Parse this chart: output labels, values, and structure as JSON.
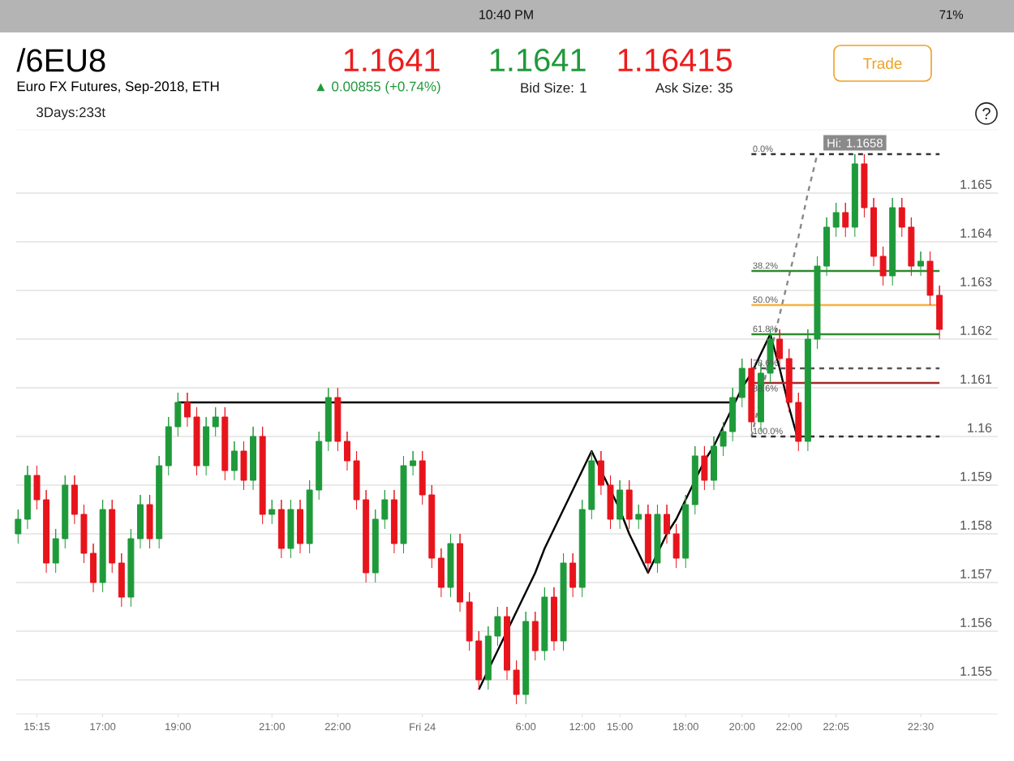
{
  "chart_data": {
    "type": "candlestick",
    "title": "/6EU8",
    "subtitle": "Euro FX Futures, Sep-2018, ETH",
    "categories": [
      null,
      null,
      "15:15",
      null,
      null,
      null,
      null,
      null,
      null,
      "17:00",
      null,
      null,
      null,
      null,
      null,
      null,
      null,
      "19:00",
      null,
      null,
      null,
      null,
      null,
      null,
      null,
      null,
      null,
      "21:00",
      null,
      null,
      null,
      null,
      null,
      null,
      "22:00",
      null,
      null,
      null,
      null,
      null,
      null,
      null,
      null,
      "Fri 24",
      null,
      null,
      null,
      null,
      null,
      null,
      null,
      null,
      null,
      null,
      "6:00",
      null,
      null,
      null,
      null,
      null,
      "12:00",
      null,
      null,
      null,
      "15:00",
      null,
      null,
      null,
      null,
      null,
      null,
      "18:00",
      null,
      null,
      null,
      null,
      null,
      "20:00",
      null,
      null,
      null,
      null,
      "22:00",
      null,
      null,
      null,
      null,
      "22:05",
      null,
      null,
      null,
      null,
      null,
      null,
      null,
      null,
      "22:30",
      null,
      null
    ],
    "ohlc": [
      [
        1.158,
        1.1585,
        1.1578,
        1.1583
      ],
      [
        1.1583,
        1.1594,
        1.1581,
        1.1592
      ],
      [
        1.1592,
        1.1594,
        1.1585,
        1.1587
      ],
      [
        1.1587,
        1.1589,
        1.1572,
        1.1574
      ],
      [
        1.1574,
        1.1581,
        1.1572,
        1.1579
      ],
      [
        1.1579,
        1.1592,
        1.1577,
        1.159
      ],
      [
        1.159,
        1.1592,
        1.1582,
        1.1584
      ],
      [
        1.1584,
        1.1586,
        1.1574,
        1.1576
      ],
      [
        1.1576,
        1.1578,
        1.1568,
        1.157
      ],
      [
        1.157,
        1.1587,
        1.1568,
        1.1585
      ],
      [
        1.1585,
        1.1587,
        1.1572,
        1.1574
      ],
      [
        1.1574,
        1.1576,
        1.1565,
        1.1567
      ],
      [
        1.1567,
        1.1581,
        1.1565,
        1.1579
      ],
      [
        1.1579,
        1.1588,
        1.1577,
        1.1586
      ],
      [
        1.1586,
        1.1588,
        1.1577,
        1.1579
      ],
      [
        1.1579,
        1.1596,
        1.1577,
        1.1594
      ],
      [
        1.1594,
        1.1604,
        1.1592,
        1.1602
      ],
      [
        1.1602,
        1.1609,
        1.16,
        1.1607
      ],
      [
        1.1607,
        1.1609,
        1.1602,
        1.1604
      ],
      [
        1.1604,
        1.1606,
        1.1592,
        1.1594
      ],
      [
        1.1594,
        1.1604,
        1.1592,
        1.1602
      ],
      [
        1.1602,
        1.1606,
        1.16,
        1.1604
      ],
      [
        1.1604,
        1.1606,
        1.1591,
        1.1593
      ],
      [
        1.1593,
        1.1599,
        1.1591,
        1.1597
      ],
      [
        1.1597,
        1.1599,
        1.1589,
        1.1591
      ],
      [
        1.1591,
        1.1602,
        1.1589,
        1.16
      ],
      [
        1.16,
        1.1602,
        1.1582,
        1.1584
      ],
      [
        1.1584,
        1.1587,
        1.1582,
        1.1585
      ],
      [
        1.1585,
        1.1587,
        1.1575,
        1.1577
      ],
      [
        1.1577,
        1.1587,
        1.1575,
        1.1585
      ],
      [
        1.1585,
        1.1587,
        1.1576,
        1.1578
      ],
      [
        1.1578,
        1.1591,
        1.1576,
        1.1589
      ],
      [
        1.1589,
        1.1601,
        1.1587,
        1.1599
      ],
      [
        1.1599,
        1.161,
        1.1597,
        1.1608
      ],
      [
        1.1608,
        1.161,
        1.1597,
        1.1599
      ],
      [
        1.1599,
        1.1601,
        1.1593,
        1.1595
      ],
      [
        1.1595,
        1.1597,
        1.1585,
        1.1587
      ],
      [
        1.1587,
        1.1589,
        1.157,
        1.1572
      ],
      [
        1.1572,
        1.1585,
        1.157,
        1.1583
      ],
      [
        1.1583,
        1.1589,
        1.1581,
        1.1587
      ],
      [
        1.1587,
        1.1589,
        1.1576,
        1.1578
      ],
      [
        1.1578,
        1.1596,
        1.1576,
        1.1594
      ],
      [
        1.1594,
        1.1597,
        1.1592,
        1.1595
      ],
      [
        1.1595,
        1.1597,
        1.1586,
        1.1588
      ],
      [
        1.1588,
        1.159,
        1.1573,
        1.1575
      ],
      [
        1.1575,
        1.1577,
        1.1567,
        1.1569
      ],
      [
        1.1569,
        1.158,
        1.1567,
        1.1578
      ],
      [
        1.1578,
        1.158,
        1.1564,
        1.1566
      ],
      [
        1.1566,
        1.1568,
        1.1556,
        1.1558
      ],
      [
        1.1558,
        1.156,
        1.1548,
        1.155
      ],
      [
        1.155,
        1.1561,
        1.1548,
        1.1559
      ],
      [
        1.1559,
        1.1565,
        1.1557,
        1.1563
      ],
      [
        1.1563,
        1.1565,
        1.155,
        1.1552
      ],
      [
        1.1552,
        1.1554,
        1.1545,
        1.1547
      ],
      [
        1.1547,
        1.1564,
        1.1545,
        1.1562
      ],
      [
        1.1562,
        1.1564,
        1.1554,
        1.1556
      ],
      [
        1.1556,
        1.1569,
        1.1554,
        1.1567
      ],
      [
        1.1567,
        1.1569,
        1.1556,
        1.1558
      ],
      [
        1.1558,
        1.1576,
        1.1556,
        1.1574
      ],
      [
        1.1574,
        1.1576,
        1.1567,
        1.1569
      ],
      [
        1.1569,
        1.1587,
        1.1567,
        1.1585
      ],
      [
        1.1585,
        1.1597,
        1.1583,
        1.1595
      ],
      [
        1.1595,
        1.1597,
        1.1588,
        1.159
      ],
      [
        1.159,
        1.1592,
        1.1581,
        1.1583
      ],
      [
        1.1583,
        1.1591,
        1.1581,
        1.1589
      ],
      [
        1.1589,
        1.1591,
        1.1581,
        1.1583
      ],
      [
        1.1583,
        1.1586,
        1.1581,
        1.1584
      ],
      [
        1.1584,
        1.1586,
        1.1572,
        1.1574
      ],
      [
        1.1574,
        1.1586,
        1.1572,
        1.1584
      ],
      [
        1.1584,
        1.1586,
        1.1578,
        1.158
      ],
      [
        1.158,
        1.1582,
        1.1573,
        1.1575
      ],
      [
        1.1575,
        1.1588,
        1.1573,
        1.1586
      ],
      [
        1.1586,
        1.1598,
        1.1584,
        1.1596
      ],
      [
        1.1596,
        1.1598,
        1.1589,
        1.1591
      ],
      [
        1.1591,
        1.16,
        1.1589,
        1.1598
      ],
      [
        1.1598,
        1.1603,
        1.1596,
        1.1601
      ],
      [
        1.1601,
        1.161,
        1.1599,
        1.1608
      ],
      [
        1.1608,
        1.1616,
        1.1606,
        1.1614
      ],
      [
        1.1614,
        1.1616,
        1.1601,
        1.1603
      ],
      [
        1.1603,
        1.1615,
        1.1601,
        1.1613
      ],
      [
        1.1613,
        1.1622,
        1.1611,
        1.162
      ],
      [
        1.162,
        1.1622,
        1.1614,
        1.1616
      ],
      [
        1.1616,
        1.1618,
        1.1605,
        1.1607
      ],
      [
        1.1607,
        1.1609,
        1.1597,
        1.1599
      ],
      [
        1.1599,
        1.1622,
        1.1597,
        1.162
      ],
      [
        1.162,
        1.1637,
        1.1618,
        1.1635
      ],
      [
        1.1635,
        1.1645,
        1.1633,
        1.1643
      ],
      [
        1.1643,
        1.1648,
        1.1641,
        1.1646
      ],
      [
        1.1646,
        1.1648,
        1.1641,
        1.1643
      ],
      [
        1.1643,
        1.1658,
        1.1641,
        1.1656
      ],
      [
        1.1656,
        1.1658,
        1.1645,
        1.1647
      ],
      [
        1.1647,
        1.1649,
        1.1635,
        1.1637
      ],
      [
        1.1637,
        1.1639,
        1.1631,
        1.1633
      ],
      [
        1.1633,
        1.1649,
        1.1631,
        1.1647
      ],
      [
        1.1647,
        1.1649,
        1.1641,
        1.1643
      ],
      [
        1.1643,
        1.1645,
        1.1633,
        1.1635
      ],
      [
        1.1635,
        1.1638,
        1.1633,
        1.1636
      ],
      [
        1.1636,
        1.1638,
        1.1627,
        1.1629
      ],
      [
        1.1629,
        1.1631,
        1.162,
        1.1622
      ]
    ],
    "series": [
      {
        "type": "line",
        "color": "#000000",
        "values": [
          null,
          null,
          null,
          null,
          null,
          null,
          null,
          null,
          null,
          null,
          null,
          null,
          null,
          null,
          null,
          null,
          null,
          1.1607,
          1.1607,
          1.1607,
          1.1607,
          1.1607,
          1.1607,
          1.1607,
          1.1607,
          1.1607,
          1.1607,
          1.1607,
          1.1607,
          1.1607,
          1.1607,
          1.1607,
          1.1607,
          1.1607,
          1.1607,
          1.1607,
          1.1607,
          1.1607,
          1.1607,
          1.1607,
          1.1607,
          1.1607,
          1.1607,
          1.1607,
          1.1607,
          1.1607,
          1.1607,
          1.1607,
          1.1607,
          1.1607,
          1.1607,
          1.1607,
          1.1607,
          1.1607,
          1.1607,
          1.1607,
          1.1607,
          1.1607,
          1.1607,
          1.1607,
          1.1607,
          1.1607,
          1.1607,
          1.1607,
          1.1607,
          1.1607,
          1.1607,
          1.1607,
          1.1607,
          1.1607,
          1.1607,
          1.1607,
          1.1607,
          1.1607,
          1.1607,
          1.1607,
          1.1607,
          null,
          null,
          null,
          null,
          null,
          null,
          null,
          null,
          null,
          null,
          null,
          null,
          null,
          null,
          null,
          null,
          null,
          null,
          null,
          null,
          null,
          null
        ]
      },
      {
        "type": "line",
        "color": "#000000",
        "values": [
          null,
          null,
          null,
          null,
          null,
          null,
          null,
          null,
          null,
          null,
          null,
          null,
          null,
          null,
          null,
          null,
          null,
          null,
          null,
          null,
          null,
          null,
          null,
          null,
          null,
          null,
          null,
          null,
          null,
          null,
          null,
          null,
          null,
          null,
          null,
          null,
          null,
          null,
          null,
          null,
          null,
          null,
          null,
          null,
          null,
          null,
          null,
          null,
          null,
          1.1548,
          1.1552,
          1.1556,
          1.156,
          1.1564,
          1.1568,
          1.1572,
          1.1577,
          1.1581,
          1.1585,
          1.1589,
          1.1593,
          1.1597,
          1.1593,
          1.1589,
          1.1585,
          1.158,
          1.1576,
          1.1572,
          1.1576,
          1.158,
          1.1583,
          1.1587,
          1.1591,
          1.1595,
          1.1598,
          1.1602,
          1.1606,
          1.161,
          1.1613,
          1.1617,
          1.1621,
          1.1614,
          1.1606,
          1.1599,
          null,
          null,
          null,
          null,
          null,
          null,
          null,
          null,
          null,
          null,
          null,
          null,
          null,
          null,
          null
        ]
      },
      {
        "type": "line",
        "color": "#888888",
        "line_style": "dashed",
        "values": [
          null,
          null,
          null,
          null,
          null,
          null,
          null,
          null,
          null,
          null,
          null,
          null,
          null,
          null,
          null,
          null,
          null,
          null,
          null,
          null,
          null,
          null,
          null,
          null,
          null,
          null,
          null,
          null,
          null,
          null,
          null,
          null,
          null,
          null,
          null,
          null,
          null,
          null,
          null,
          null,
          null,
          null,
          null,
          null,
          null,
          null,
          null,
          null,
          null,
          null,
          null,
          null,
          null,
          null,
          null,
          null,
          null,
          null,
          null,
          null,
          null,
          null,
          null,
          null,
          null,
          null,
          null,
          null,
          null,
          null,
          null,
          null,
          null,
          null,
          null,
          null,
          null,
          null,
          1.16,
          1.1608,
          1.1617,
          1.1625,
          1.1633,
          1.1641,
          1.165,
          1.1658,
          null,
          null,
          null,
          null,
          null,
          null,
          null,
          null,
          null,
          null,
          null,
          null,
          null
        ]
      },
      {
        "type": "line",
        "color": "#333333",
        "line_style": "dashed",
        "values": [
          null,
          null,
          null,
          null,
          null,
          null,
          null,
          null,
          null,
          null,
          null,
          null,
          null,
          null,
          null,
          null,
          null,
          null,
          null,
          null,
          null,
          null,
          null,
          null,
          null,
          null,
          null,
          null,
          null,
          null,
          null,
          null,
          null,
          null,
          null,
          null,
          null,
          null,
          null,
          null,
          null,
          null,
          null,
          null,
          null,
          null,
          null,
          null,
          null,
          null,
          null,
          null,
          null,
          null,
          null,
          null,
          null,
          null,
          null,
          null,
          null,
          null,
          null,
          null,
          null,
          null,
          null,
          null,
          null,
          null,
          null,
          null,
          null,
          null,
          null,
          null,
          null,
          null,
          1.1658,
          1.1658,
          1.1658,
          1.1658,
          1.1658,
          1.1658,
          1.1658,
          1.1658,
          1.1658,
          1.1658,
          1.1658,
          1.1658,
          1.1658,
          1.1658,
          1.1658,
          1.1658,
          1.1658,
          1.1658,
          1.1658,
          1.1658,
          1.1658
        ]
      },
      {
        "type": "line",
        "color": "#2e8b2e",
        "values": [
          null,
          null,
          null,
          null,
          null,
          null,
          null,
          null,
          null,
          null,
          null,
          null,
          null,
          null,
          null,
          null,
          null,
          null,
          null,
          null,
          null,
          null,
          null,
          null,
          null,
          null,
          null,
          null,
          null,
          null,
          null,
          null,
          null,
          null,
          null,
          null,
          null,
          null,
          null,
          null,
          null,
          null,
          null,
          null,
          null,
          null,
          null,
          null,
          null,
          null,
          null,
          null,
          null,
          null,
          null,
          null,
          null,
          null,
          null,
          null,
          null,
          null,
          null,
          null,
          null,
          null,
          null,
          null,
          null,
          null,
          null,
          null,
          null,
          null,
          null,
          null,
          null,
          null,
          1.1634,
          1.1634,
          1.1634,
          1.1634,
          1.1634,
          1.1634,
          1.1634,
          1.1634,
          1.1634,
          1.1634,
          1.1634,
          1.1634,
          1.1634,
          1.1634,
          1.1634,
          1.1634,
          1.1634,
          1.1634,
          1.1634,
          1.1634,
          1.1634
        ]
      },
      {
        "type": "line",
        "color": "#f5b342",
        "values": [
          null,
          null,
          null,
          null,
          null,
          null,
          null,
          null,
          null,
          null,
          null,
          null,
          null,
          null,
          null,
          null,
          null,
          null,
          null,
          null,
          null,
          null,
          null,
          null,
          null,
          null,
          null,
          null,
          null,
          null,
          null,
          null,
          null,
          null,
          null,
          null,
          null,
          null,
          null,
          null,
          null,
          null,
          null,
          null,
          null,
          null,
          null,
          null,
          null,
          null,
          null,
          null,
          null,
          null,
          null,
          null,
          null,
          null,
          null,
          null,
          null,
          null,
          null,
          null,
          null,
          null,
          null,
          null,
          null,
          null,
          null,
          null,
          null,
          null,
          null,
          null,
          null,
          null,
          1.1627,
          1.1627,
          1.1627,
          1.1627,
          1.1627,
          1.1627,
          1.1627,
          1.1627,
          1.1627,
          1.1627,
          1.1627,
          1.1627,
          1.1627,
          1.1627,
          1.1627,
          1.1627,
          1.1627,
          1.1627,
          1.1627,
          1.1627,
          1.1627
        ]
      },
      {
        "type": "line",
        "color": "#2e8b2e",
        "values": [
          null,
          null,
          null,
          null,
          null,
          null,
          null,
          null,
          null,
          null,
          null,
          null,
          null,
          null,
          null,
          null,
          null,
          null,
          null,
          null,
          null,
          null,
          null,
          null,
          null,
          null,
          null,
          null,
          null,
          null,
          null,
          null,
          null,
          null,
          null,
          null,
          null,
          null,
          null,
          null,
          null,
          null,
          null,
          null,
          null,
          null,
          null,
          null,
          null,
          null,
          null,
          null,
          null,
          null,
          null,
          null,
          null,
          null,
          null,
          null,
          null,
          null,
          null,
          null,
          null,
          null,
          null,
          null,
          null,
          null,
          null,
          null,
          null,
          null,
          null,
          null,
          null,
          null,
          1.1621,
          1.1621,
          1.1621,
          1.1621,
          1.1621,
          1.1621,
          1.1621,
          1.1621,
          1.1621,
          1.1621,
          1.1621,
          1.1621,
          1.1621,
          1.1621,
          1.1621,
          1.1621,
          1.1621,
          1.1621,
          1.1621,
          1.1621,
          1.1621
        ]
      },
      {
        "type": "line",
        "color": "#555555",
        "line_style": "dashed",
        "values": [
          null,
          null,
          null,
          null,
          null,
          null,
          null,
          null,
          null,
          null,
          null,
          null,
          null,
          null,
          null,
          null,
          null,
          null,
          null,
          null,
          null,
          null,
          null,
          null,
          null,
          null,
          null,
          null,
          null,
          null,
          null,
          null,
          null,
          null,
          null,
          null,
          null,
          null,
          null,
          null,
          null,
          null,
          null,
          null,
          null,
          null,
          null,
          null,
          null,
          null,
          null,
          null,
          null,
          null,
          null,
          null,
          null,
          null,
          null,
          null,
          null,
          null,
          null,
          null,
          null,
          null,
          null,
          null,
          null,
          null,
          null,
          null,
          null,
          null,
          null,
          null,
          null,
          null,
          1.1614,
          1.1614,
          1.1614,
          1.1614,
          1.1614,
          1.1614,
          1.1614,
          1.1614,
          1.1614,
          1.1614,
          1.1614,
          1.1614,
          1.1614,
          1.1614,
          1.1614,
          1.1614,
          1.1614,
          1.1614,
          1.1614,
          1.1614,
          1.1614
        ]
      },
      {
        "type": "line",
        "color": "#a52a2a",
        "values": [
          null,
          null,
          null,
          null,
          null,
          null,
          null,
          null,
          null,
          null,
          null,
          null,
          null,
          null,
          null,
          null,
          null,
          null,
          null,
          null,
          null,
          null,
          null,
          null,
          null,
          null,
          null,
          null,
          null,
          null,
          null,
          null,
          null,
          null,
          null,
          null,
          null,
          null,
          null,
          null,
          null,
          null,
          null,
          null,
          null,
          null,
          null,
          null,
          null,
          null,
          null,
          null,
          null,
          null,
          null,
          null,
          null,
          null,
          null,
          null,
          null,
          null,
          null,
          null,
          null,
          null,
          null,
          null,
          null,
          null,
          null,
          null,
          null,
          null,
          null,
          null,
          null,
          null,
          1.1611,
          1.1611,
          1.1611,
          1.1611,
          1.1611,
          1.1611,
          1.1611,
          1.1611,
          1.1611,
          1.1611,
          1.1611,
          1.1611,
          1.1611,
          1.1611,
          1.1611,
          1.1611,
          1.1611,
          1.1611,
          1.1611,
          1.1611,
          1.1611
        ]
      },
      {
        "type": "line",
        "color": "#333333",
        "line_style": "dashed",
        "values": [
          null,
          null,
          null,
          null,
          null,
          null,
          null,
          null,
          null,
          null,
          null,
          null,
          null,
          null,
          null,
          null,
          null,
          null,
          null,
          null,
          null,
          null,
          null,
          null,
          null,
          null,
          null,
          null,
          null,
          null,
          null,
          null,
          null,
          null,
          null,
          null,
          null,
          null,
          null,
          null,
          null,
          null,
          null,
          null,
          null,
          null,
          null,
          null,
          null,
          null,
          null,
          null,
          null,
          null,
          null,
          null,
          null,
          null,
          null,
          null,
          null,
          null,
          null,
          null,
          null,
          null,
          null,
          null,
          null,
          null,
          null,
          null,
          null,
          null,
          null,
          null,
          null,
          null,
          1.16,
          1.16,
          1.16,
          1.16,
          1.16,
          1.16,
          1.16,
          1.16,
          1.16,
          1.16,
          1.16,
          1.16,
          1.16,
          1.16,
          1.16,
          1.16,
          1.16,
          1.16,
          1.16,
          1.16,
          1.16
        ]
      }
    ],
    "ylim": [
      1.1543,
      1.1663
    ],
    "yticks": [
      1.155,
      1.156,
      1.157,
      1.158,
      1.159,
      1.16,
      1.161,
      1.162,
      1.163,
      1.164,
      1.165
    ],
    "grid": "y",
    "annotations": [
      "1.1641",
      "▲ 0.00855 (+0.74%)",
      "1.1641",
      "Bid Size: 1",
      "1.16415",
      "Ask Size: 35",
      "Trade",
      "3Days:233t",
      "?",
      "10:40 PM",
      "71%",
      {
        "text": "0.0%",
        "y": 1.1658
      },
      {
        "text": "38.2%",
        "y": 1.1634
      },
      {
        "text": "50.0%",
        "y": 1.1627
      },
      {
        "text": "61.8%",
        "y": 1.1621
      },
      {
        "text": "78.6%",
        "y": 1.1614
      },
      {
        "text": "88.6%",
        "y": 1.1611
      },
      {
        "text": "100.0%",
        "y": 1.16
      },
      {
        "text": "Hi: 1.1658",
        "y": 1.1658
      }
    ]
  }
}
